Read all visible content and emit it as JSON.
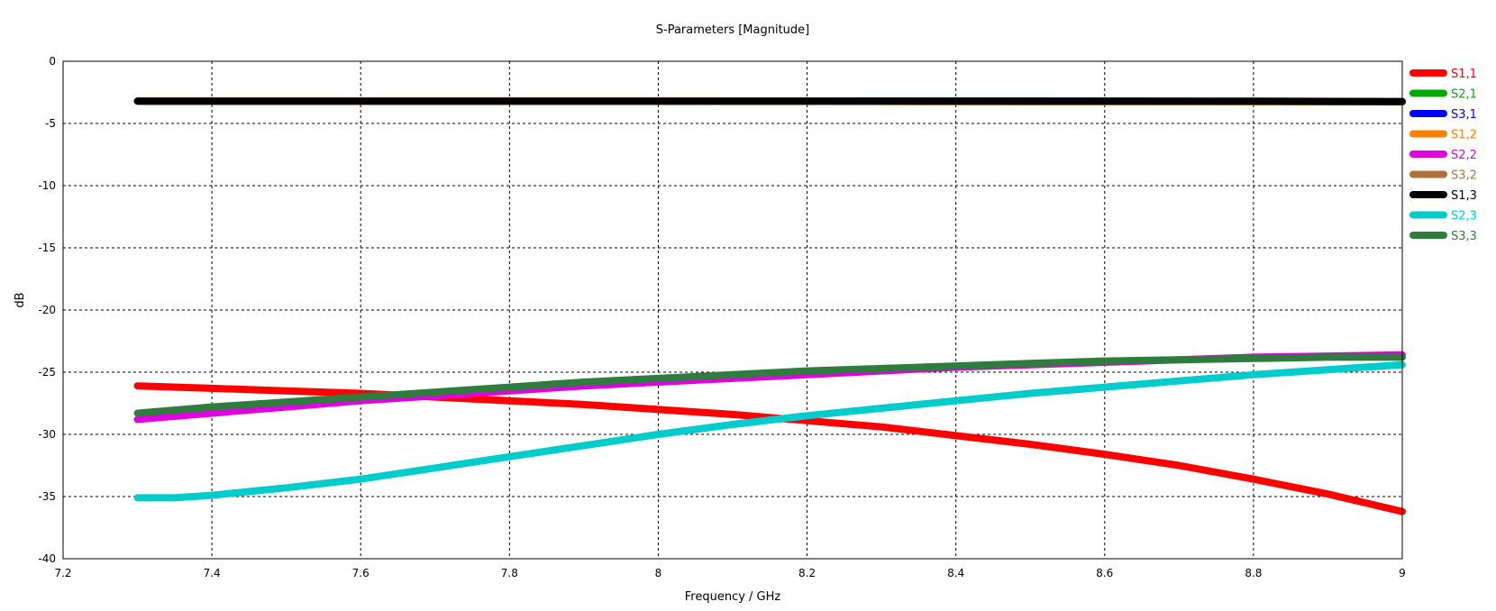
{
  "chart_data": {
    "type": "line",
    "title": "S-Parameters [Magnitude]",
    "xlabel": "Frequency / GHz",
    "ylabel": "dB",
    "xlim": [
      7.2,
      9
    ],
    "ylim": [
      -40,
      0
    ],
    "xticks": [
      7.2,
      7.4,
      7.6,
      7.8,
      8,
      8.2,
      8.4,
      8.6,
      8.8,
      9
    ],
    "xtick_labels": [
      "7.2",
      "7.4",
      "7.6",
      "7.8",
      "8",
      "8.2",
      "8.4",
      "8.6",
      "8.8",
      "9"
    ],
    "yticks": [
      0,
      -5,
      -10,
      -15,
      -20,
      -25,
      -30,
      -35,
      -40
    ],
    "ytick_labels": [
      "0",
      "-5",
      "-10",
      "-15",
      "-20",
      "-25",
      "-30",
      "-35",
      "-40"
    ],
    "grid": true,
    "legend_position": "right",
    "series": [
      {
        "name": "S1,1",
        "color": "#ff0000",
        "x": [
          7.3,
          7.4,
          7.5,
          7.6,
          7.7,
          7.8,
          7.9,
          8.0,
          8.1,
          8.2,
          8.3,
          8.4,
          8.5,
          8.6,
          8.7,
          8.8,
          8.9,
          9.0
        ],
        "y": [
          -26.1,
          -26.3,
          -26.5,
          -26.7,
          -27.0,
          -27.3,
          -27.6,
          -28.0,
          -28.4,
          -28.9,
          -29.4,
          -30.1,
          -30.8,
          -31.6,
          -32.5,
          -33.6,
          -34.8,
          -36.2
        ]
      },
      {
        "name": "S2,1",
        "color": "#00aa00",
        "x": [
          7.3,
          8.0,
          8.5,
          9.0
        ],
        "y": [
          -3.2,
          -3.2,
          -3.2,
          -3.25
        ]
      },
      {
        "name": "S3,1",
        "color": "#0000ff",
        "x": [
          7.3,
          8.0,
          8.5,
          9.0
        ],
        "y": [
          -3.2,
          -3.2,
          -3.2,
          -3.25
        ]
      },
      {
        "name": "S1,2",
        "color": "#ff8000",
        "x": [
          7.3,
          8.0,
          8.5,
          8.8,
          9.0
        ],
        "y": [
          -3.2,
          -3.2,
          -3.25,
          -3.25,
          -3.25
        ]
      },
      {
        "name": "S2,2",
        "color": "#e000e0",
        "x": [
          7.3,
          7.4,
          7.5,
          7.6,
          7.7,
          7.8,
          7.9,
          8.0,
          8.1,
          8.2,
          8.3,
          8.4,
          8.5,
          8.6,
          8.7,
          8.8,
          8.9,
          9.0
        ],
        "y": [
          -28.8,
          -28.3,
          -27.8,
          -27.3,
          -26.9,
          -26.5,
          -26.1,
          -25.8,
          -25.5,
          -25.2,
          -24.9,
          -24.6,
          -24.4,
          -24.2,
          -24.0,
          -23.8,
          -23.7,
          -23.6
        ]
      },
      {
        "name": "S3,2",
        "color": "#b0703a",
        "x": [
          7.3,
          8.0,
          8.5,
          8.8,
          9.0
        ],
        "y": [
          -3.2,
          -3.2,
          -3.25,
          -3.25,
          -3.25
        ]
      },
      {
        "name": "S1,3",
        "color": "#000000",
        "x": [
          7.3,
          7.6,
          7.8,
          8.0,
          8.2,
          8.4,
          8.6,
          8.8,
          9.0
        ],
        "y": [
          -3.2,
          -3.2,
          -3.2,
          -3.2,
          -3.2,
          -3.2,
          -3.2,
          -3.2,
          -3.25
        ]
      },
      {
        "name": "S2,3",
        "color": "#00cccc",
        "x": [
          7.3,
          7.35,
          7.4,
          7.5,
          7.6,
          7.7,
          7.8,
          7.9,
          8.0,
          8.1,
          8.2,
          8.3,
          8.4,
          8.5,
          8.6,
          8.7,
          8.8,
          8.9,
          9.0
        ],
        "y": [
          -35.1,
          -35.1,
          -34.9,
          -34.3,
          -33.6,
          -32.7,
          -31.8,
          -30.9,
          -30.0,
          -29.2,
          -28.5,
          -27.9,
          -27.3,
          -26.7,
          -26.2,
          -25.7,
          -25.2,
          -24.8,
          -24.4
        ]
      },
      {
        "name": "S3,3",
        "color": "#2e7d3e",
        "x": [
          7.3,
          7.4,
          7.5,
          7.6,
          7.7,
          7.8,
          7.9,
          8.0,
          8.1,
          8.2,
          8.3,
          8.4,
          8.5,
          8.6,
          8.7,
          8.8,
          8.9,
          9.0
        ],
        "y": [
          -28.3,
          -27.8,
          -27.4,
          -27.0,
          -26.6,
          -26.2,
          -25.8,
          -25.5,
          -25.2,
          -24.9,
          -24.7,
          -24.5,
          -24.3,
          -24.1,
          -24.0,
          -23.9,
          -23.8,
          -23.8
        ]
      }
    ]
  }
}
